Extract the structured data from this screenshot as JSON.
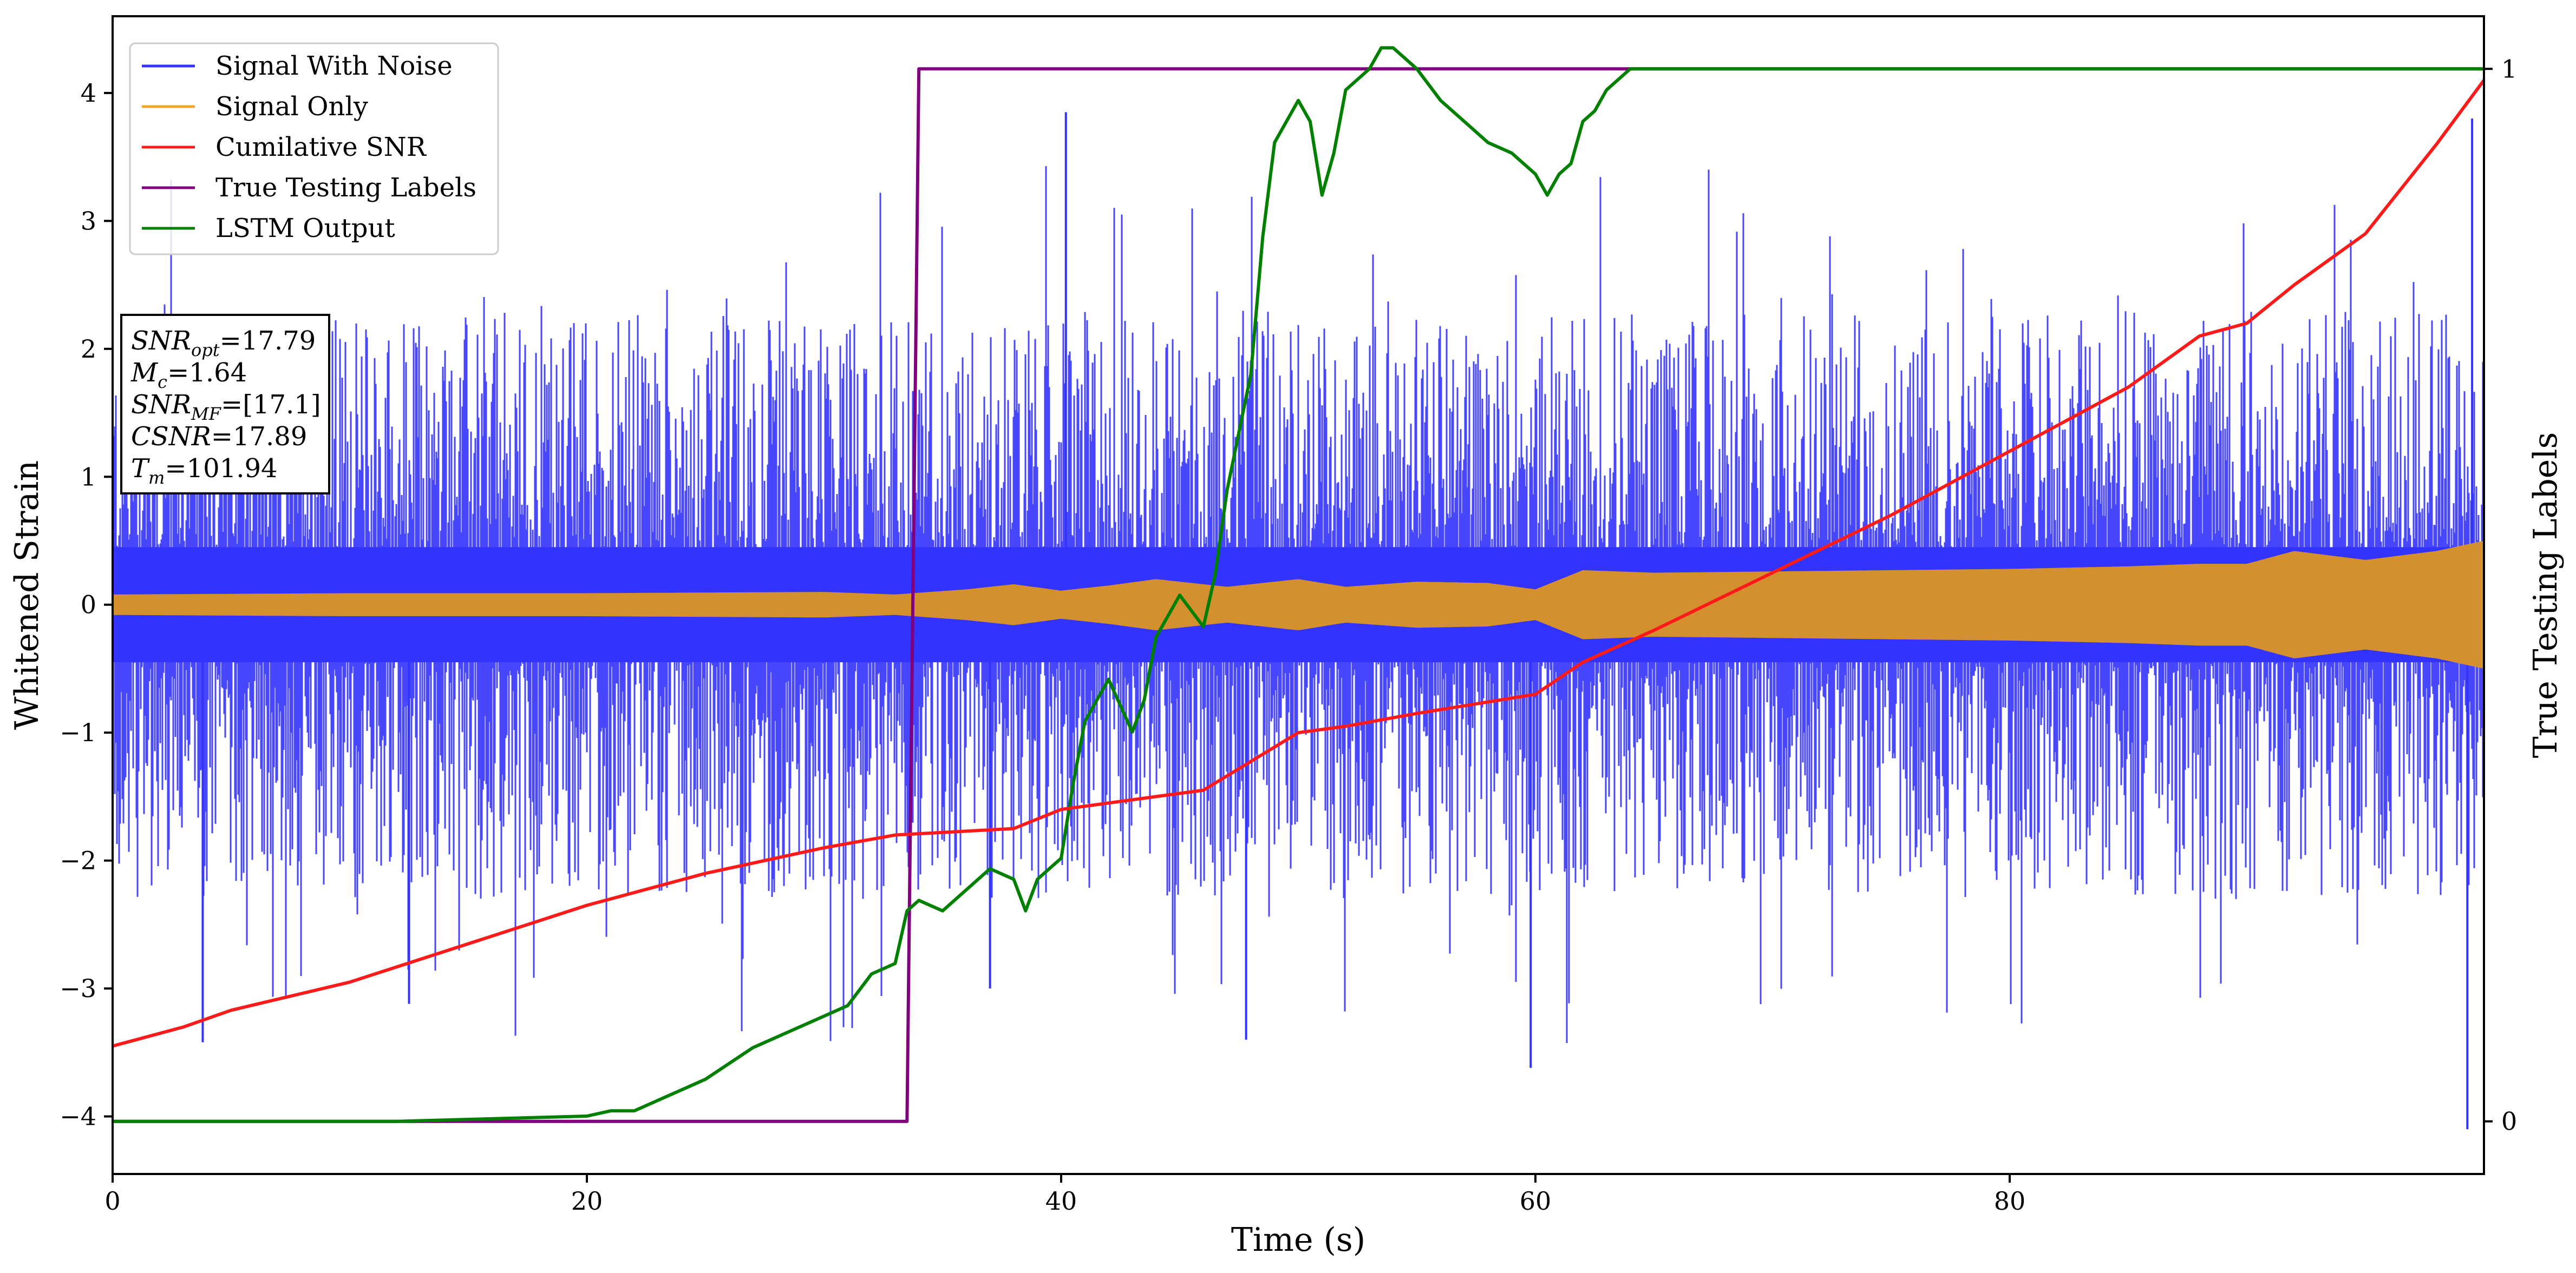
{
  "chart_data": {
    "type": "line",
    "title": "",
    "xlabel": "Time (s)",
    "ylabel": "Whitened Strain",
    "y2label": "True Testing Labels",
    "xlim": [
      0,
      100
    ],
    "ylim": [
      -4.45,
      4.6
    ],
    "y2lim": [
      -0.05,
      1.05
    ],
    "x_ticks": [
      "0",
      "20",
      "40",
      "60",
      "80"
    ],
    "y_ticks": [
      "−4",
      "−3",
      "−2",
      "−1",
      "0",
      "1",
      "2",
      "3",
      "4"
    ],
    "y2_ticks": [
      "0",
      "1"
    ],
    "grid": false,
    "legend": {
      "position": "top-left",
      "entries": [
        "Signal With Noise",
        "Signal Only",
        "Cumilative SNR",
        "True Testing Labels",
        "LSTM Output"
      ]
    },
    "stats_box": {
      "lines": [
        {
          "base": "SNR",
          "sub": "opt",
          "value": "=17.79"
        },
        {
          "base": "M",
          "sub": "c",
          "value": "=1.64"
        },
        {
          "base": "SNR",
          "sub": "MF",
          "value": "=[17.1]"
        },
        {
          "base": "CSNR",
          "sub": "",
          "value": "=17.89"
        },
        {
          "base": "T",
          "sub": "m",
          "value": "=101.94"
        }
      ]
    },
    "colors": {
      "signal_with_noise": "#3333ff",
      "signal_only": "#d4902e",
      "cumulative_snr": "#ff1a1a",
      "true_labels": "#800080",
      "lstm_output": "#008000"
    },
    "series": [
      {
        "name": "Signal With Noise",
        "axis": "left",
        "kind": "noise",
        "core_band": [
          -0.45,
          0.45
        ],
        "typical_peak": 2.3,
        "min": -4.1,
        "max": 3.85
      },
      {
        "name": "Signal Only",
        "axis": "left",
        "kind": "envelope",
        "x": [
          0,
          10,
          20,
          30,
          33,
          36,
          38,
          40,
          42,
          44,
          47,
          50,
          52,
          55,
          58,
          60,
          62,
          65,
          70,
          75,
          80,
          85,
          88,
          90,
          92,
          95,
          98,
          100
        ],
        "envelope": [
          0.08,
          0.09,
          0.09,
          0.1,
          0.08,
          0.12,
          0.16,
          0.11,
          0.15,
          0.2,
          0.14,
          0.2,
          0.14,
          0.18,
          0.17,
          0.12,
          0.27,
          0.25,
          0.26,
          0.27,
          0.28,
          0.3,
          0.32,
          0.32,
          0.42,
          0.35,
          0.42,
          0.5
        ]
      },
      {
        "name": "Cumilative SNR",
        "axis": "left",
        "x": [
          0,
          3,
          5,
          10,
          15,
          20,
          25,
          30,
          33,
          38,
          40,
          44,
          46,
          50,
          52,
          55,
          60,
          62,
          65,
          70,
          75,
          80,
          85,
          88,
          90,
          92,
          95,
          98,
          100
        ],
        "values": [
          -3.45,
          -3.3,
          -3.17,
          -2.95,
          -2.65,
          -2.35,
          -2.1,
          -1.9,
          -1.8,
          -1.75,
          -1.6,
          -1.5,
          -1.45,
          -1.0,
          -0.95,
          -0.85,
          -0.7,
          -0.45,
          -0.2,
          0.25,
          0.7,
          1.2,
          1.7,
          2.1,
          2.2,
          2.5,
          2.9,
          3.6,
          4.1
        ]
      },
      {
        "name": "True Testing Labels",
        "axis": "right",
        "x": [
          0,
          33.5,
          34,
          100
        ],
        "values": [
          0,
          0,
          1,
          1
        ]
      },
      {
        "name": "LSTM Output",
        "axis": "right",
        "x": [
          0,
          12,
          20,
          21,
          22,
          23,
          25,
          27,
          28,
          30,
          31,
          32,
          33,
          33.5,
          34,
          35,
          36,
          37,
          38,
          38.5,
          39,
          39.5,
          40,
          40.5,
          41,
          42,
          43,
          43.5,
          44,
          45,
          46,
          46.5,
          47,
          48,
          48.5,
          49,
          50,
          50.5,
          51,
          51.5,
          52,
          53,
          53.5,
          54,
          55,
          56,
          57,
          58,
          59,
          60,
          60.5,
          61,
          61.5,
          62,
          62.5,
          63,
          64,
          66,
          68,
          100
        ],
        "values": [
          0,
          0,
          0.005,
          0.01,
          0.01,
          0.02,
          0.04,
          0.07,
          0.08,
          0.1,
          0.11,
          0.14,
          0.15,
          0.2,
          0.21,
          0.2,
          0.22,
          0.24,
          0.23,
          0.2,
          0.23,
          0.24,
          0.25,
          0.32,
          0.38,
          0.42,
          0.37,
          0.4,
          0.46,
          0.5,
          0.47,
          0.52,
          0.6,
          0.71,
          0.84,
          0.93,
          0.97,
          0.95,
          0.88,
          0.92,
          0.98,
          1.0,
          1.02,
          1.02,
          1.0,
          0.97,
          0.95,
          0.93,
          0.92,
          0.9,
          0.88,
          0.9,
          0.91,
          0.95,
          0.96,
          0.98,
          1.0,
          1.0,
          1.0,
          1.0
        ]
      }
    ]
  }
}
